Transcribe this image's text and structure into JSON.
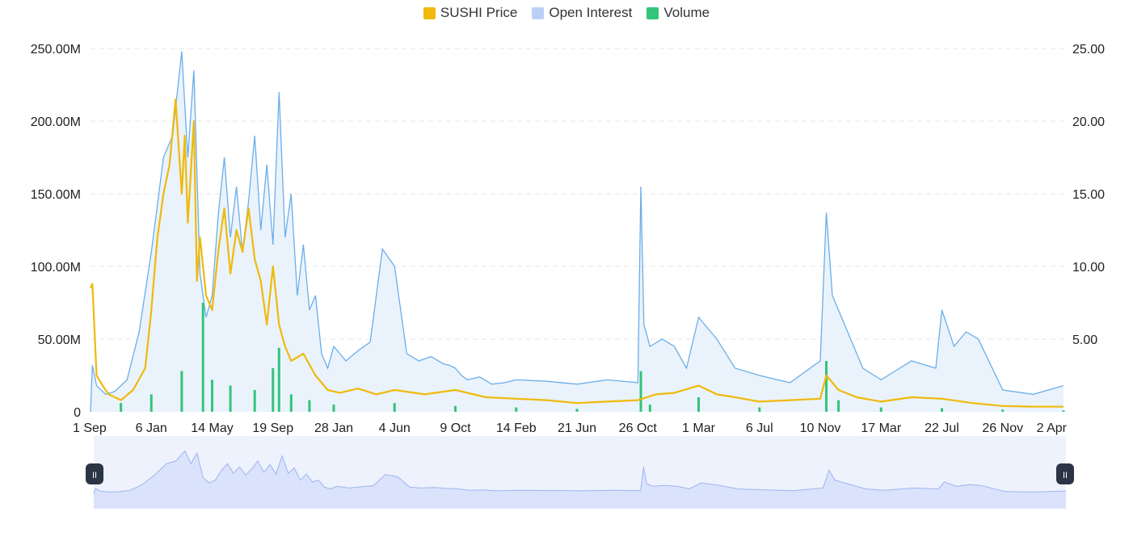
{
  "legend": [
    {
      "label": "SUSHI Price",
      "color": "#f0b90b"
    },
    {
      "label": "Open Interest",
      "color": "#bcd0f7"
    },
    {
      "label": "Volume",
      "color": "#33c47a"
    }
  ],
  "navigator": {
    "left_handle_icon": "pause-icon",
    "right_handle_icon": "pause-icon",
    "handle_glyph": "II"
  },
  "chart_data": {
    "type": "line",
    "x_tick_labels": [
      "1 Sep",
      "6 Jan",
      "14 May",
      "19 Sep",
      "28 Jan",
      "4 Jun",
      "9 Oct",
      "14 Feb",
      "21 Jun",
      "26 Oct",
      "1 Mar",
      "6 Jul",
      "10 Nov",
      "17 Mar",
      "22 Jul",
      "26 Nov",
      "2 Apr"
    ],
    "y_left_ticks": [
      "0",
      "50.00M",
      "100.00M",
      "150.00M",
      "200.00M",
      "250.00M"
    ],
    "y_left_lim": [
      0,
      250000000
    ],
    "y_right_ticks": [
      "5.00",
      "10.00",
      "15.00",
      "20.00",
      "25.00"
    ],
    "y_right_lim": [
      0,
      25
    ],
    "grid": true,
    "legend_position": "top-center",
    "series": [
      {
        "name": "Open Interest",
        "axis": "left",
        "color": "#6aaeea",
        "x": [
          0,
          0.03,
          0.1,
          0.25,
          0.4,
          0.6,
          0.8,
          1.0,
          1.2,
          1.35,
          1.5,
          1.6,
          1.7,
          1.8,
          1.9,
          2.0,
          2.1,
          2.2,
          2.3,
          2.4,
          2.5,
          2.6,
          2.7,
          2.8,
          2.9,
          3.0,
          3.1,
          3.2,
          3.3,
          3.4,
          3.5,
          3.6,
          3.7,
          3.8,
          3.9,
          4.0,
          4.2,
          4.4,
          4.6,
          4.8,
          5.0,
          5.2,
          5.4,
          5.6,
          5.8,
          5.9,
          6.0,
          6.1,
          6.2,
          6.4,
          6.6,
          6.8,
          7.0,
          7.5,
          8.0,
          8.5,
          9.0,
          9.05,
          9.1,
          9.2,
          9.4,
          9.6,
          9.8,
          10.0,
          10.3,
          10.6,
          11.0,
          11.5,
          12.0,
          12.1,
          12.2,
          12.4,
          12.7,
          13.0,
          13.5,
          13.9,
          14.0,
          14.2,
          14.4,
          14.6,
          15.0,
          15.5,
          16.0
        ],
        "values": [
          0,
          32000000,
          18000000,
          12000000,
          14000000,
          22000000,
          55000000,
          110000000,
          175000000,
          190000000,
          248000000,
          175000000,
          235000000,
          95000000,
          65000000,
          80000000,
          135000000,
          175000000,
          120000000,
          155000000,
          110000000,
          145000000,
          190000000,
          125000000,
          170000000,
          115000000,
          220000000,
          120000000,
          150000000,
          80000000,
          115000000,
          70000000,
          80000000,
          40000000,
          30000000,
          45000000,
          35000000,
          42000000,
          48000000,
          112000000,
          100000000,
          40000000,
          35000000,
          38000000,
          33000000,
          32000000,
          30000000,
          25000000,
          22000000,
          24000000,
          19000000,
          20000000,
          22000000,
          21000000,
          19000000,
          22000000,
          20000000,
          155000000,
          60000000,
          45000000,
          50000000,
          45000000,
          30000000,
          65000000,
          50000000,
          30000000,
          25000000,
          20000000,
          35000000,
          137000000,
          80000000,
          60000000,
          30000000,
          22000000,
          35000000,
          30000000,
          70000000,
          45000000,
          55000000,
          50000000,
          15000000,
          12000000,
          18000000
        ]
      },
      {
        "name": "SUSHI Price",
        "axis": "right",
        "color": "#f0b90b",
        "x": [
          0,
          0.03,
          0.1,
          0.2,
          0.3,
          0.5,
          0.7,
          0.9,
          1.0,
          1.1,
          1.2,
          1.3,
          1.4,
          1.5,
          1.55,
          1.6,
          1.7,
          1.75,
          1.8,
          1.9,
          2.0,
          2.1,
          2.2,
          2.3,
          2.4,
          2.5,
          2.6,
          2.7,
          2.8,
          2.9,
          3.0,
          3.1,
          3.2,
          3.3,
          3.5,
          3.7,
          3.9,
          4.1,
          4.4,
          4.7,
          5.0,
          5.5,
          6.0,
          6.5,
          7.0,
          7.5,
          8.0,
          8.5,
          9.0,
          9.3,
          9.6,
          10.0,
          10.3,
          10.6,
          11.0,
          11.5,
          12.0,
          12.1,
          12.3,
          12.6,
          13.0,
          13.5,
          14.0,
          14.5,
          15.0,
          15.5,
          16.0
        ],
        "values": [
          8.5,
          8.8,
          2.5,
          1.8,
          1.2,
          0.8,
          1.5,
          3.0,
          7.0,
          12.0,
          15.0,
          17.0,
          21.5,
          15.0,
          19.0,
          13.0,
          20.0,
          9.0,
          12.0,
          8.0,
          7.0,
          11.0,
          14.0,
          9.5,
          12.5,
          11.0,
          14.0,
          10.5,
          9.0,
          6.0,
          10.0,
          6.0,
          4.5,
          3.5,
          4.0,
          2.5,
          1.5,
          1.3,
          1.6,
          1.2,
          1.5,
          1.2,
          1.5,
          1.0,
          0.9,
          0.8,
          0.6,
          0.7,
          0.8,
          1.2,
          1.3,
          1.8,
          1.2,
          1.0,
          0.7,
          0.8,
          0.9,
          2.5,
          1.5,
          1.0,
          0.7,
          1.0,
          0.9,
          0.6,
          0.4,
          0.35,
          0.35
        ]
      },
      {
        "name": "Volume",
        "axis": "left",
        "color": "#33c47a",
        "x": [
          0.5,
          1.0,
          1.5,
          1.85,
          2.0,
          2.3,
          2.7,
          3.0,
          3.1,
          3.3,
          3.6,
          4.0,
          5.0,
          6.0,
          7.0,
          8.0,
          9.05,
          9.2,
          10.0,
          11.0,
          12.1,
          12.3,
          13.0,
          14.0,
          15.0,
          16.0
        ],
        "values": [
          6000000,
          12000000,
          28000000,
          75000000,
          22000000,
          18000000,
          15000000,
          30000000,
          44000000,
          12000000,
          8000000,
          5000000,
          6000000,
          4000000,
          3000000,
          2000000,
          28000000,
          5000000,
          10000000,
          3000000,
          35000000,
          8000000,
          3000000,
          2500000,
          1500000,
          1000000
        ]
      }
    ]
  }
}
